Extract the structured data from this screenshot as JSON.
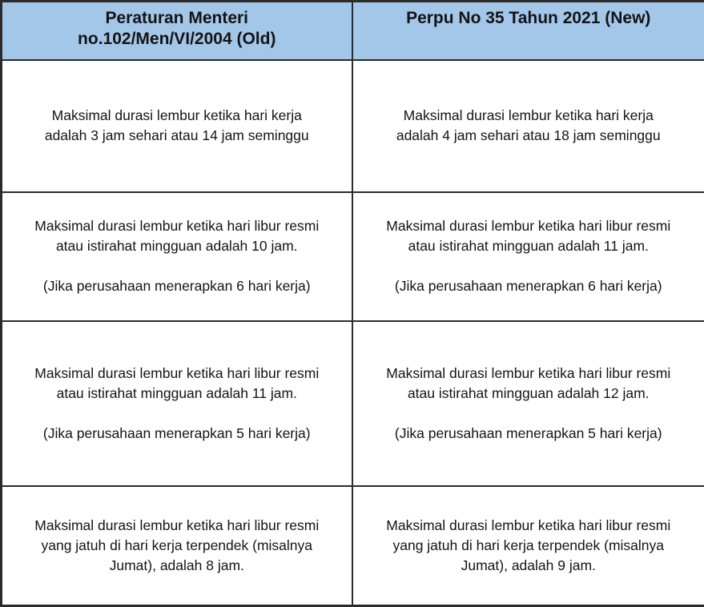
{
  "table": {
    "header_bg": "#a3c7e8",
    "border_color": "#2b2b2b",
    "text_color": "#141414",
    "headers": {
      "old": "Peraturan Menteri\nno.102/Men/VI/2004 (Old)",
      "new": "Perpu No 35 Tahun 2021 (New)"
    },
    "rows": [
      {
        "old": "Maksimal durasi lembur ketika hari kerja\nadalah 3 jam sehari atau 14 jam seminggu",
        "new": "Maksimal durasi lembur ketika hari kerja\nadalah 4 jam sehari atau 18 jam seminggu"
      },
      {
        "old": "Maksimal durasi lembur ketika hari libur resmi\natau istirahat mingguan adalah 10 jam.\n\n(Jika perusahaan menerapkan 6 hari kerja)",
        "new": "Maksimal durasi lembur ketika hari libur resmi\natau istirahat mingguan adalah 11 jam.\n\n(Jika perusahaan menerapkan 6 hari kerja)"
      },
      {
        "old": "Maksimal durasi lembur ketika hari libur resmi\natau istirahat mingguan adalah 11 jam.\n\n(Jika perusahaan menerapkan 5 hari kerja)",
        "new": "Maksimal durasi lembur ketika hari libur resmi\natau istirahat mingguan adalah 12 jam.\n\n(Jika perusahaan menerapkan 5 hari kerja)"
      },
      {
        "old": "Maksimal durasi lembur ketika hari libur resmi\nyang jatuh di hari kerja terpendek (misalnya\nJumat), adalah 8 jam.",
        "new": "Maksimal durasi lembur ketika hari libur resmi\nyang jatuh di hari kerja terpendek (misalnya\nJumat), adalah 9 jam."
      }
    ]
  }
}
